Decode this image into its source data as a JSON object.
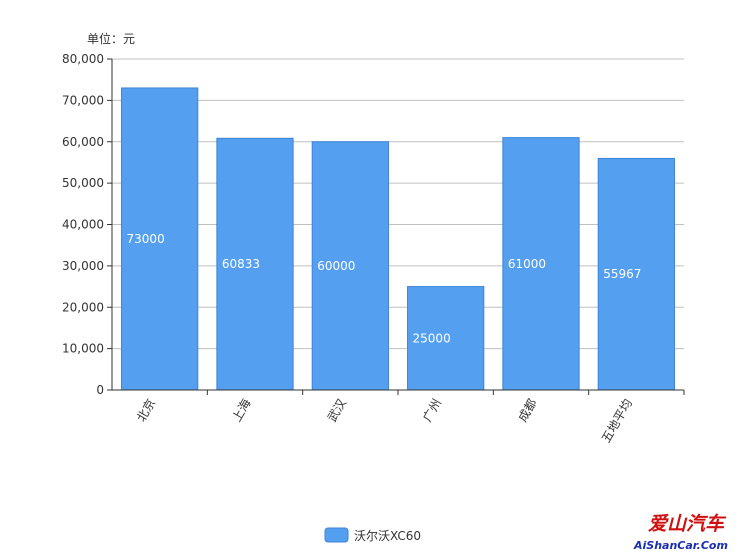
{
  "chart_data": {
    "type": "bar",
    "unit_label": "单位：元",
    "categories": [
      "北京",
      "上海",
      "武汉",
      "广州",
      "成都",
      "五地平均"
    ],
    "series": [
      {
        "name": "沃尔沃XC60",
        "values": [
          73000,
          60833,
          60000,
          25000,
          61000,
          55967
        ],
        "color": "#559ff0"
      }
    ],
    "ylim": [
      0,
      80000
    ],
    "yticks": [
      "0",
      "10,000",
      "20,000",
      "30,000",
      "40,000",
      "50,000",
      "60,000",
      "70,000",
      "80,000"
    ],
    "grid": true,
    "legend_position": "bottom-center",
    "data_labels": [
      "73000",
      "60833",
      "60000",
      "25000",
      "61000",
      "55967"
    ]
  },
  "watermark": {
    "line1": "爱山汽车",
    "line2": "AiShanCar.Com"
  }
}
